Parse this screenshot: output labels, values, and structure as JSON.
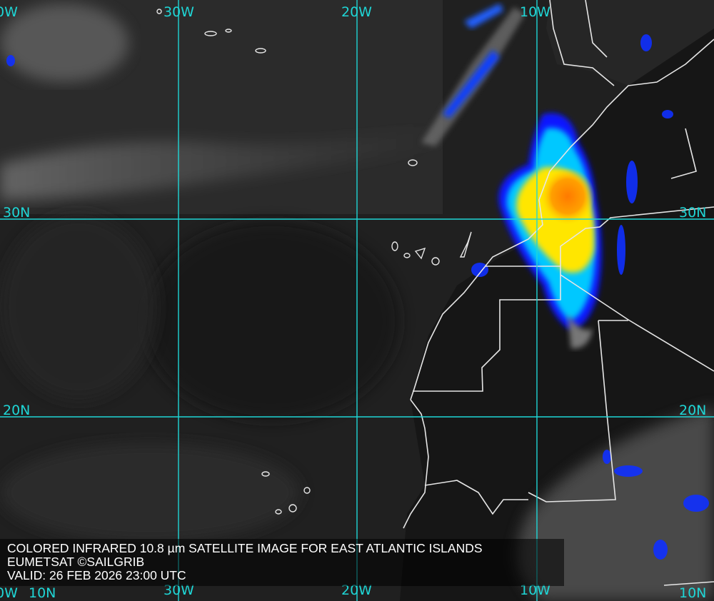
{
  "map": {
    "product": "Colored infrared satellite image",
    "colors": {
      "grid": "#1fd6d6",
      "borders": "#e0e0e0",
      "cold_cloud_scale": [
        "#0010ff",
        "#00c8ff",
        "#ffff00",
        "#ff8000"
      ]
    },
    "grid_labels": {
      "top": [
        "0W",
        "30W",
        "20W",
        "10W"
      ],
      "bottom": [
        "0W",
        "30W",
        "20W",
        "10W"
      ],
      "left": [
        "30N",
        "20N",
        "10N"
      ],
      "right": [
        "30N",
        "20N",
        "10N"
      ]
    }
  },
  "caption": {
    "line1": "COLORED INFRARED 10.8 µm SATELLITE IMAGE FOR EAST ATLANTIC ISLANDS",
    "line2": "EUMETSAT ©SAILGRIB",
    "line3": "VALID:  26 FEB 2026 23:00 UTC"
  }
}
